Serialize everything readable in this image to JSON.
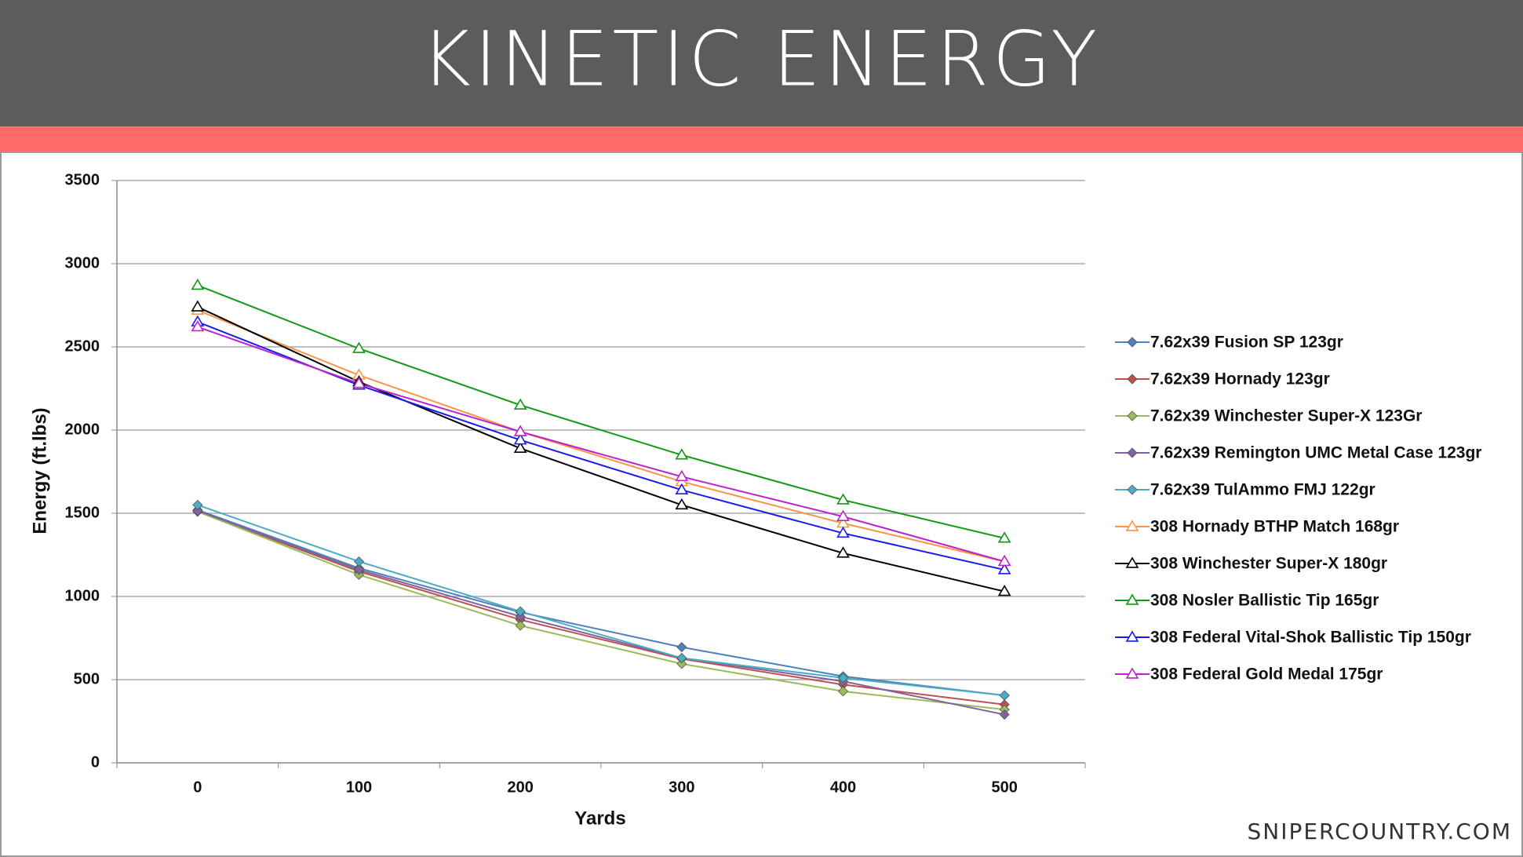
{
  "chart_data": {
    "type": "line",
    "title": "KINETIC ENERGY",
    "x_label": "Yards",
    "y_label": "Energy (ft.lbs)",
    "source": "SNIPERCOUNTRY.COM",
    "categories": [
      "0",
      "100",
      "200",
      "300",
      "400",
      "500"
    ],
    "ylim": [
      0,
      3500
    ],
    "yticks": [
      0,
      500,
      1000,
      1500,
      2000,
      2500,
      3000,
      3500
    ],
    "grid": true,
    "legend": "right",
    "series": [
      {
        "name": "7.62x39 Fusion SP 123gr",
        "color": "#4f81bd",
        "marker": "diamond",
        "values": [
          1520,
          1170,
          905,
          695,
          520,
          405
        ]
      },
      {
        "name": "7.62x39 Hornady 123gr",
        "color": "#c0504d",
        "marker": "diamond",
        "values": [
          1510,
          1150,
          860,
          625,
          470,
          350
        ]
      },
      {
        "name": "7.62x39 Winchester Super-X 123Gr",
        "color": "#9bbb59",
        "marker": "diamond",
        "values": [
          1510,
          1130,
          825,
          595,
          430,
          320
        ]
      },
      {
        "name": "7.62x39 Remington UMC Metal Case 123gr",
        "color": "#8064a2",
        "marker": "diamond",
        "values": [
          1515,
          1160,
          880,
          630,
          490,
          290
        ]
      },
      {
        "name": "7.62x39 TulAmmo FMJ 122gr",
        "color": "#4bacc6",
        "marker": "diamond",
        "values": [
          1550,
          1210,
          910,
          630,
          510,
          405
        ]
      },
      {
        "name": "308 Hornady BTHP Match 168gr",
        "color": "#f79646",
        "marker": "triangle",
        "values": [
          2720,
          2330,
          1990,
          1690,
          1440,
          1210
        ]
      },
      {
        "name": "308 Winchester Super-X 180gr",
        "color": "#000000",
        "marker": "triangle",
        "values": [
          2740,
          2290,
          1890,
          1550,
          1260,
          1030
        ]
      },
      {
        "name": "308 Nosler Ballistic Tip 165gr",
        "color": "#119911",
        "marker": "triangle",
        "values": [
          2870,
          2490,
          2150,
          1850,
          1580,
          1350
        ]
      },
      {
        "name": "308 Federal Vital-Shok Ballistic Tip 150gr",
        "color": "#1a1aee",
        "marker": "triangle",
        "values": [
          2650,
          2270,
          1940,
          1640,
          1380,
          1160
        ]
      },
      {
        "name": "308 Federal Gold Medal 175gr",
        "color": "#bb22cc",
        "marker": "triangle",
        "values": [
          2620,
          2280,
          1990,
          1720,
          1480,
          1210
        ]
      }
    ]
  }
}
